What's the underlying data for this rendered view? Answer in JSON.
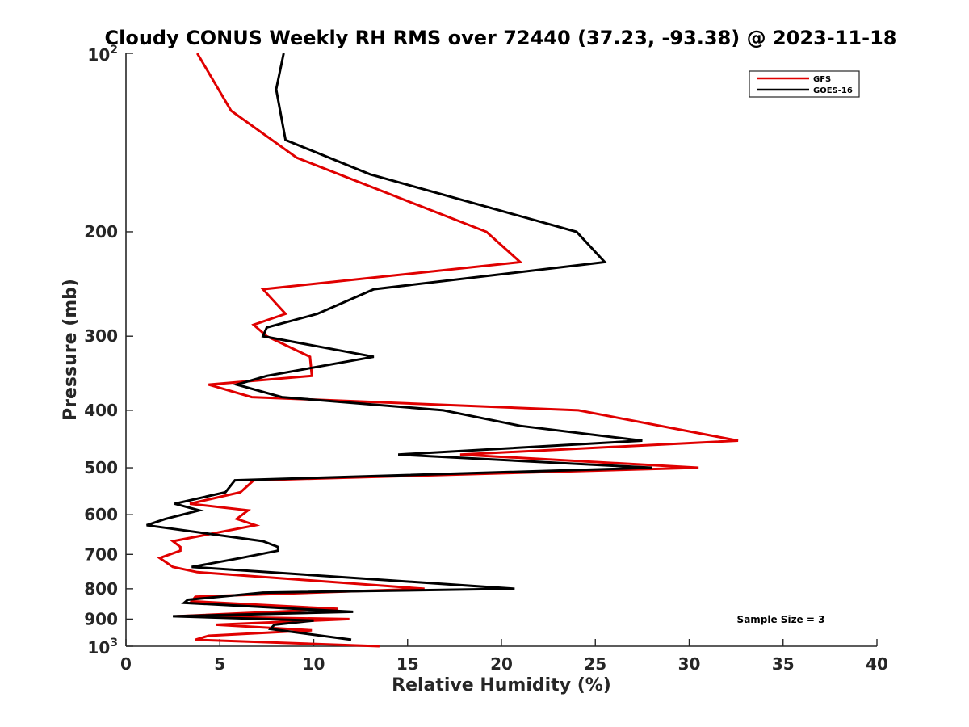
{
  "chart_data": {
    "type": "line",
    "title": "Cloudy CONUS Weekly RH RMS over 72440 (37.23, -93.38) @ 2023-11-18",
    "xlabel": "Relative Humidity (%)",
    "ylabel": "Pressure (mb)",
    "xlim": [
      0,
      40
    ],
    "ylim": [
      100,
      1000
    ],
    "y_scale": "log",
    "y_reversed": true,
    "grid": false,
    "legend_position": "top-right",
    "x_ticks": [
      "0",
      "5",
      "10",
      "15",
      "20",
      "25",
      "30",
      "35",
      "40"
    ],
    "y_ticks": [
      {
        "value": 100,
        "base": "10",
        "exp": "2"
      },
      {
        "value": 200,
        "label": "200"
      },
      {
        "value": 300,
        "label": "300"
      },
      {
        "value": 400,
        "label": "400"
      },
      {
        "value": 500,
        "label": "500"
      },
      {
        "value": 600,
        "label": "600"
      },
      {
        "value": 700,
        "label": "700"
      },
      {
        "value": 800,
        "label": "800"
      },
      {
        "value": 900,
        "label": "900"
      },
      {
        "value": 1000,
        "base": "10",
        "exp": "3"
      }
    ],
    "annotation": "Sample Size = 3",
    "series": [
      {
        "name": "GFS",
        "color": "#e00000",
        "points": [
          [
            3.8,
            100
          ],
          [
            5.6,
            125
          ],
          [
            9.1,
            150
          ],
          [
            14.5,
            175
          ],
          [
            19.2,
            200
          ],
          [
            21.0,
            225
          ],
          [
            7.3,
            250
          ],
          [
            8.5,
            275
          ],
          [
            6.8,
            287
          ],
          [
            7.5,
            300
          ],
          [
            9.8,
            325
          ],
          [
            9.9,
            350
          ],
          [
            4.4,
            362
          ],
          [
            6.7,
            380
          ],
          [
            24.1,
            400
          ],
          [
            32.6,
            450
          ],
          [
            17.8,
            475
          ],
          [
            30.5,
            500
          ],
          [
            6.8,
            525
          ],
          [
            6.1,
            550
          ],
          [
            3.4,
            575
          ],
          [
            6.5,
            590
          ],
          [
            5.9,
            610
          ],
          [
            6.9,
            625
          ],
          [
            2.5,
            665
          ],
          [
            2.9,
            680
          ],
          [
            2.9,
            690
          ],
          [
            1.8,
            710
          ],
          [
            2.5,
            735
          ],
          [
            3.8,
            750
          ],
          [
            15.9,
            800
          ],
          [
            3.7,
            825
          ],
          [
            3.5,
            840
          ],
          [
            11.3,
            865
          ],
          [
            2.7,
            890
          ],
          [
            11.9,
            900
          ],
          [
            4.8,
            920
          ],
          [
            9.9,
            940
          ],
          [
            4.4,
            960
          ],
          [
            3.7,
            975
          ],
          [
            13.5,
            1000
          ]
        ]
      },
      {
        "name": "GOES-16",
        "color": "#000000",
        "points": [
          [
            8.4,
            100
          ],
          [
            8.0,
            115
          ],
          [
            8.5,
            140
          ],
          [
            13.0,
            160
          ],
          [
            24.0,
            200
          ],
          [
            25.5,
            225
          ],
          [
            13.2,
            250
          ],
          [
            10.2,
            275
          ],
          [
            7.5,
            290
          ],
          [
            7.3,
            300
          ],
          [
            13.2,
            325
          ],
          [
            7.5,
            350
          ],
          [
            5.9,
            362
          ],
          [
            8.3,
            380
          ],
          [
            16.9,
            400
          ],
          [
            21.0,
            425
          ],
          [
            27.5,
            450
          ],
          [
            14.5,
            475
          ],
          [
            28.0,
            500
          ],
          [
            5.8,
            525
          ],
          [
            5.3,
            550
          ],
          [
            2.6,
            575
          ],
          [
            3.9,
            590
          ],
          [
            2.1,
            610
          ],
          [
            1.1,
            625
          ],
          [
            7.3,
            665
          ],
          [
            8.1,
            680
          ],
          [
            8.1,
            690
          ],
          [
            6.1,
            710
          ],
          [
            3.5,
            735
          ],
          [
            20.7,
            800
          ],
          [
            7.3,
            812
          ],
          [
            3.3,
            835
          ],
          [
            3.1,
            845
          ],
          [
            12.1,
            875
          ],
          [
            2.5,
            890
          ],
          [
            10.0,
            905
          ],
          [
            7.9,
            920
          ],
          [
            7.7,
            935
          ],
          [
            12.0,
            975
          ]
        ]
      }
    ]
  }
}
